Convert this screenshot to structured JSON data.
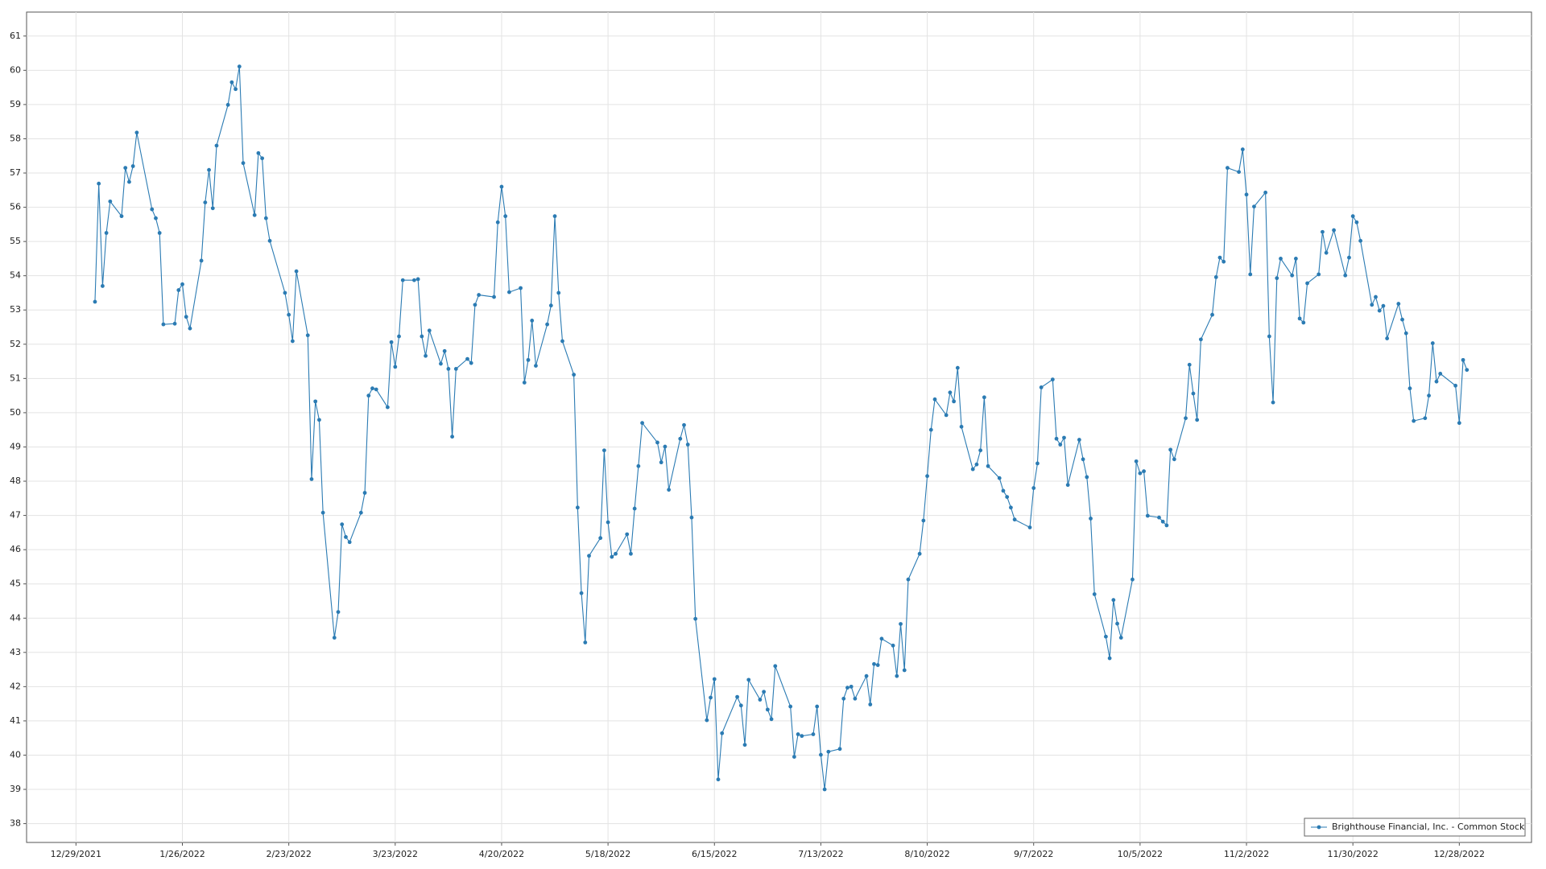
{
  "chart_data": {
    "type": "line",
    "x": [
      "1/3/2022",
      "1/4/2022",
      "1/5/2022",
      "1/6/2022",
      "1/7/2022",
      "1/10/2022",
      "1/11/2022",
      "1/12/2022",
      "1/13/2022",
      "1/14/2022",
      "1/18/2022",
      "1/19/2022",
      "1/20/2022",
      "1/21/2022",
      "1/24/2022",
      "1/25/2022",
      "1/26/2022",
      "1/27/2022",
      "1/28/2022",
      "1/31/2022",
      "2/1/2022",
      "2/2/2022",
      "2/3/2022",
      "2/4/2022",
      "2/7/2022",
      "2/8/2022",
      "2/9/2022",
      "2/10/2022",
      "2/11/2022",
      "2/14/2022",
      "2/15/2022",
      "2/16/2022",
      "2/17/2022",
      "2/18/2022",
      "2/22/2022",
      "2/23/2022",
      "2/24/2022",
      "2/25/2022",
      "2/28/2022",
      "3/1/2022",
      "3/2/2022",
      "3/3/2022",
      "3/4/2022",
      "3/7/2022",
      "3/8/2022",
      "3/9/2022",
      "3/10/2022",
      "3/11/2022",
      "3/14/2022",
      "3/15/2022",
      "3/16/2022",
      "3/17/2022",
      "3/18/2022",
      "3/21/2022",
      "3/22/2022",
      "3/23/2022",
      "3/24/2022",
      "3/25/2022",
      "3/28/2022",
      "3/29/2022",
      "3/30/2022",
      "3/31/2022",
      "4/1/2022",
      "4/4/2022",
      "4/5/2022",
      "4/6/2022",
      "4/7/2022",
      "4/8/2022",
      "4/11/2022",
      "4/12/2022",
      "4/13/2022",
      "4/14/2022",
      "4/18/2022",
      "4/19/2022",
      "4/20/2022",
      "4/21/2022",
      "4/22/2022",
      "4/25/2022",
      "4/26/2022",
      "4/27/2022",
      "4/28/2022",
      "4/29/2022",
      "5/2/2022",
      "5/3/2022",
      "5/4/2022",
      "5/5/2022",
      "5/6/2022",
      "5/9/2022",
      "5/10/2022",
      "5/11/2022",
      "5/12/2022",
      "5/13/2022",
      "5/16/2022",
      "5/17/2022",
      "5/18/2022",
      "5/19/2022",
      "5/20/2022",
      "5/23/2022",
      "5/24/2022",
      "5/25/2022",
      "5/26/2022",
      "5/27/2022",
      "5/31/2022",
      "6/1/2022",
      "6/2/2022",
      "6/3/2022",
      "6/6/2022",
      "6/7/2022",
      "6/8/2022",
      "6/9/2022",
      "6/10/2022",
      "6/13/2022",
      "6/14/2022",
      "6/15/2022",
      "6/16/2022",
      "6/17/2022",
      "6/21/2022",
      "6/22/2022",
      "6/23/2022",
      "6/24/2022",
      "6/27/2022",
      "6/28/2022",
      "6/29/2022",
      "6/30/2022",
      "7/1/2022",
      "7/5/2022",
      "7/6/2022",
      "7/7/2022",
      "7/8/2022",
      "7/11/2022",
      "7/12/2022",
      "7/13/2022",
      "7/14/2022",
      "7/15/2022",
      "7/18/2022",
      "7/19/2022",
      "7/20/2022",
      "7/21/2022",
      "7/22/2022",
      "7/25/2022",
      "7/26/2022",
      "7/27/2022",
      "7/28/2022",
      "7/29/2022",
      "8/1/2022",
      "8/2/2022",
      "8/3/2022",
      "8/4/2022",
      "8/5/2022",
      "8/8/2022",
      "8/9/2022",
      "8/10/2022",
      "8/11/2022",
      "8/12/2022",
      "8/15/2022",
      "8/16/2022",
      "8/17/2022",
      "8/18/2022",
      "8/19/2022",
      "8/22/2022",
      "8/23/2022",
      "8/24/2022",
      "8/25/2022",
      "8/26/2022",
      "8/29/2022",
      "8/30/2022",
      "8/31/2022",
      "9/1/2022",
      "9/2/2022",
      "9/6/2022",
      "9/7/2022",
      "9/8/2022",
      "9/9/2022",
      "9/12/2022",
      "9/13/2022",
      "9/14/2022",
      "9/15/2022",
      "9/16/2022",
      "9/19/2022",
      "9/20/2022",
      "9/21/2022",
      "9/22/2022",
      "9/23/2022",
      "9/26/2022",
      "9/27/2022",
      "9/28/2022",
      "9/29/2022",
      "9/30/2022",
      "10/3/2022",
      "10/4/2022",
      "10/5/2022",
      "10/6/2022",
      "10/7/2022",
      "10/10/2022",
      "10/11/2022",
      "10/12/2022",
      "10/13/2022",
      "10/14/2022",
      "10/17/2022",
      "10/18/2022",
      "10/19/2022",
      "10/20/2022",
      "10/21/2022",
      "10/24/2022",
      "10/25/2022",
      "10/26/2022",
      "10/27/2022",
      "10/28/2022",
      "10/31/2022",
      "11/1/2022",
      "11/2/2022",
      "11/3/2022",
      "11/4/2022",
      "11/7/2022",
      "11/8/2022",
      "11/9/2022",
      "11/10/2022",
      "11/11/2022",
      "11/14/2022",
      "11/15/2022",
      "11/16/2022",
      "11/17/2022",
      "11/18/2022",
      "11/21/2022",
      "11/22/2022",
      "11/23/2022",
      "11/25/2022",
      "11/28/2022",
      "11/29/2022",
      "11/30/2022",
      "12/1/2022",
      "12/2/2022",
      "12/5/2022",
      "12/6/2022",
      "12/7/2022",
      "12/8/2022",
      "12/9/2022",
      "12/12/2022",
      "12/13/2022",
      "12/14/2022",
      "12/15/2022",
      "12/16/2022",
      "12/19/2022",
      "12/20/2022",
      "12/21/2022",
      "12/22/2022",
      "12/23/2022",
      "12/27/2022",
      "12/28/2022",
      "12/29/2022",
      "12/30/2022"
    ],
    "series": [
      {
        "name": "Brighthouse Financial, Inc. - Common Stock",
        "color": "#2b7bb3",
        "values": [
          53.24,
          56.69,
          53.7,
          55.25,
          56.17,
          55.74,
          57.15,
          56.74,
          57.2,
          58.18,
          55.94,
          55.68,
          55.25,
          52.58,
          52.6,
          53.58,
          53.75,
          52.8,
          52.46,
          54.44,
          56.14,
          57.09,
          55.97,
          57.8,
          58.99,
          59.65,
          59.45,
          60.11,
          57.29,
          55.77,
          57.58,
          57.43,
          55.68,
          55.02,
          53.5,
          52.86,
          52.09,
          54.13,
          52.26,
          48.06,
          50.33,
          49.79,
          47.08,
          43.43,
          44.18,
          46.74,
          46.37,
          46.22,
          47.08,
          47.66,
          50.5,
          50.71,
          50.68,
          50.16,
          52.06,
          51.34,
          52.23,
          53.87,
          53.87,
          53.9,
          52.23,
          51.66,
          52.4,
          51.43,
          51.8,
          51.28,
          49.3,
          51.28,
          51.57,
          51.45,
          53.15,
          53.44,
          53.38,
          55.56,
          56.6,
          55.74,
          53.52,
          53.64,
          50.88,
          51.54,
          52.69,
          51.37,
          52.58,
          53.13,
          55.74,
          53.5,
          52.09,
          51.11,
          47.23,
          44.73,
          43.29,
          45.82,
          46.34,
          48.9,
          46.8,
          45.79,
          45.88,
          46.45,
          45.88,
          47.2,
          48.44,
          49.7,
          49.13,
          48.55,
          49.01,
          47.75,
          49.24,
          49.64,
          49.07,
          46.94,
          43.98,
          41.02,
          41.68,
          42.22,
          39.29,
          40.64,
          41.7,
          41.45,
          40.3,
          42.2,
          41.62,
          41.85,
          41.33,
          41.05,
          42.6,
          41.42,
          39.95,
          40.61,
          40.56,
          40.61,
          41.42,
          40.01,
          39.0,
          40.1,
          40.18,
          41.65,
          41.97,
          42.0,
          41.65,
          42.31,
          41.48,
          42.66,
          42.63,
          43.4,
          43.2,
          42.31,
          43.83,
          42.48,
          45.13,
          45.88,
          46.85,
          48.15,
          49.5,
          50.39,
          49.93,
          50.59,
          50.33,
          51.31,
          49.59,
          48.35,
          48.49,
          48.9,
          50.45,
          48.44,
          48.09,
          47.72,
          47.54,
          47.23,
          46.88,
          46.65,
          47.8,
          48.52,
          50.74,
          50.97,
          49.24,
          49.07,
          49.27,
          47.89,
          49.21,
          48.64,
          48.12,
          46.91,
          44.7,
          43.46,
          42.83,
          44.53,
          43.84,
          43.43,
          45.13,
          48.58,
          48.23,
          48.29,
          46.99,
          46.94,
          46.82,
          46.71,
          48.92,
          48.64,
          49.84,
          51.4,
          50.56,
          49.79,
          52.14,
          52.86,
          53.96,
          54.53,
          54.41,
          57.15,
          57.03,
          57.69,
          56.37,
          54.04,
          56.02,
          56.43,
          52.23,
          50.3,
          53.93,
          54.5,
          54.01,
          54.5,
          52.75,
          52.63,
          53.78,
          54.04,
          55.28,
          54.67,
          55.33,
          54.01,
          54.53,
          55.74,
          55.56,
          55.02,
          53.15,
          53.38,
          52.98,
          53.12,
          52.17,
          53.18,
          52.72,
          52.32,
          50.71,
          49.76,
          49.84,
          50.5,
          52.03,
          50.91,
          51.14,
          50.79,
          49.7,
          51.54,
          51.25
        ]
      }
    ],
    "xlim": [
      "12/16/2021",
      "1/16/2023"
    ],
    "xticks": [
      "12/29/2021",
      "1/26/2022",
      "2/23/2022",
      "3/23/2022",
      "4/20/2022",
      "5/18/2022",
      "6/15/2022",
      "7/13/2022",
      "8/10/2022",
      "9/7/2022",
      "10/5/2022",
      "11/2/2022",
      "11/30/2022",
      "12/28/2022"
    ],
    "ylim": [
      37.45,
      61.7
    ],
    "yticks": [
      38,
      39,
      40,
      41,
      42,
      43,
      44,
      45,
      46,
      47,
      48,
      49,
      50,
      51,
      52,
      53,
      54,
      55,
      56,
      57,
      58,
      59,
      60,
      61
    ],
    "grid": true,
    "legend": "bottom-right"
  }
}
